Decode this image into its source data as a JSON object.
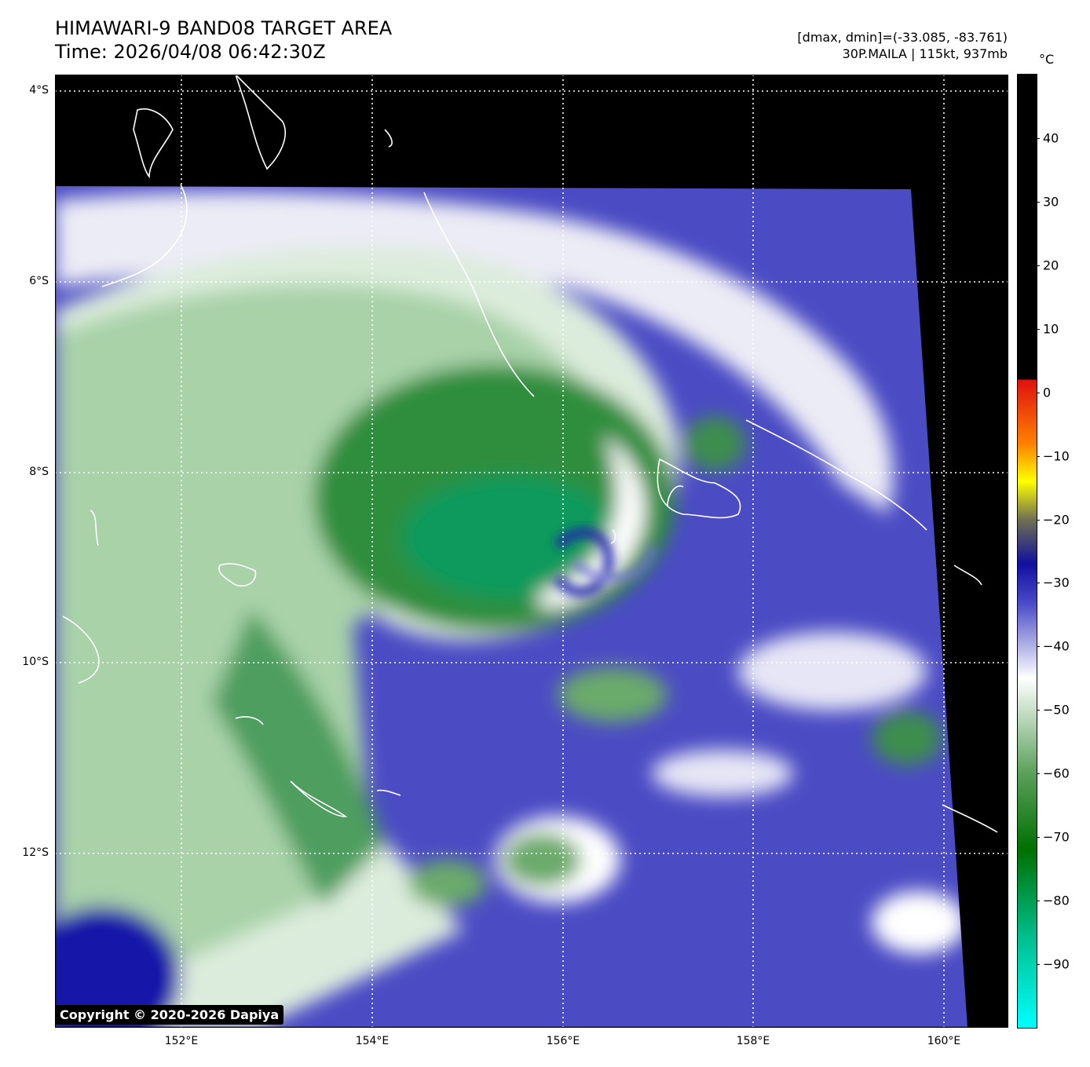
{
  "title": {
    "line1": "HIMAWARI-9 BAND08 TARGET AREA",
    "line2": "Time: 2026/04/08 06:42:30Z"
  },
  "info": {
    "range": "[dmax, dmin]=(-33.085, -83.761)",
    "storm": "30P.MAILA | 115kt, 937mb"
  },
  "colorbar": {
    "unit": "°C",
    "ticks": [
      "40",
      "30",
      "20",
      "10",
      "0",
      "−10",
      "−20",
      "−30",
      "−40",
      "−50",
      "−60",
      "−70",
      "−80",
      "−90"
    ],
    "tick_values": [
      40,
      30,
      20,
      10,
      0,
      -10,
      -20,
      -30,
      -40,
      -50,
      -60,
      -70,
      -80,
      -90
    ],
    "range": [
      -100,
      50
    ],
    "gradient": [
      {
        "v": 50,
        "c": "#000000"
      },
      {
        "v": 2,
        "c": "#000000"
      },
      {
        "v": 2,
        "c": "#e01010"
      },
      {
        "v": -8,
        "c": "#ff8000"
      },
      {
        "v": -14,
        "c": "#ffff00"
      },
      {
        "v": -20,
        "c": "#707050"
      },
      {
        "v": -27,
        "c": "#1010a0"
      },
      {
        "v": -33,
        "c": "#4848c8"
      },
      {
        "v": -45,
        "c": "#ffffff"
      },
      {
        "v": -60,
        "c": "#5aa05a"
      },
      {
        "v": -72,
        "c": "#007000"
      },
      {
        "v": -86,
        "c": "#00c090"
      },
      {
        "v": -100,
        "c": "#00ffff"
      }
    ]
  },
  "axes": {
    "lat_labels": [
      "4°S",
      "6°S",
      "8°S",
      "10°S",
      "12°S"
    ],
    "lat_values": [
      -4,
      -6,
      -8,
      -10,
      -12
    ],
    "lon_labels": [
      "152°E",
      "154°E",
      "156°E",
      "158°E",
      "160°E"
    ],
    "lon_values": [
      152,
      154,
      156,
      158,
      160
    ],
    "lon_range": [
      150.67,
      160.67
    ],
    "lat_range": [
      -3.83,
      -13.83
    ]
  },
  "copyright": "Copyright © 2020-2026 Dapiya",
  "colors": {
    "space": "#000000",
    "deep_convection": "#0a7a2a",
    "cold_tops": "#4545c2",
    "mid_cloud": "#ffffff",
    "warm_edge": "#1a1aa8"
  }
}
